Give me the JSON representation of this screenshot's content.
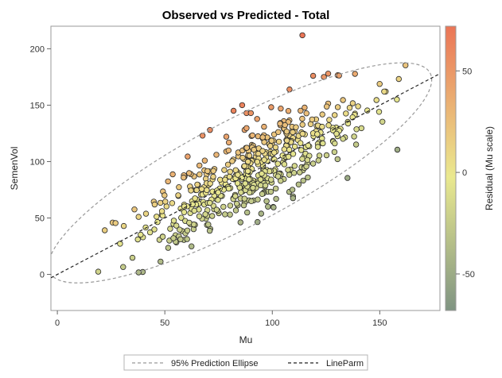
{
  "chart_data": {
    "type": "scatter",
    "title": "Observed vs Predicted - Total",
    "xlabel": "Mu",
    "ylabel": "SemenVol",
    "xlim": [
      -3,
      178
    ],
    "ylim": [
      -32,
      220
    ],
    "xticks": [
      0,
      50,
      100,
      150
    ],
    "yticks": [
      0,
      50,
      100,
      150,
      200
    ],
    "grid": false,
    "colorbar": {
      "label": "Residual (Mu scale)",
      "range": [
        -68,
        72
      ],
      "ticks": [
        -50,
        0,
        50
      ],
      "colors": [
        "#7f9482",
        "#eae98f",
        "#eb7556"
      ]
    },
    "line": {
      "name": "LineParm",
      "slope": 1,
      "intercept": 0,
      "style": "dashed",
      "color": "#222222"
    },
    "ellipse": {
      "name": "95% Prediction Ellipse",
      "center": [
        85,
        90
      ],
      "style": "dashed",
      "color": "#999999"
    },
    "legend": {
      "position": "bottom",
      "entries": [
        "95% Prediction Ellipse",
        "LineParm"
      ]
    },
    "highlight_points": [
      [
        114,
        212
      ],
      [
        82,
        145
      ],
      [
        86,
        150
      ],
      [
        88,
        143
      ],
      [
        90,
        143
      ],
      [
        71,
        128
      ],
      [
        108,
        164
      ],
      [
        119,
        176
      ],
      [
        124,
        175
      ],
      [
        126,
        178
      ]
    ]
  }
}
